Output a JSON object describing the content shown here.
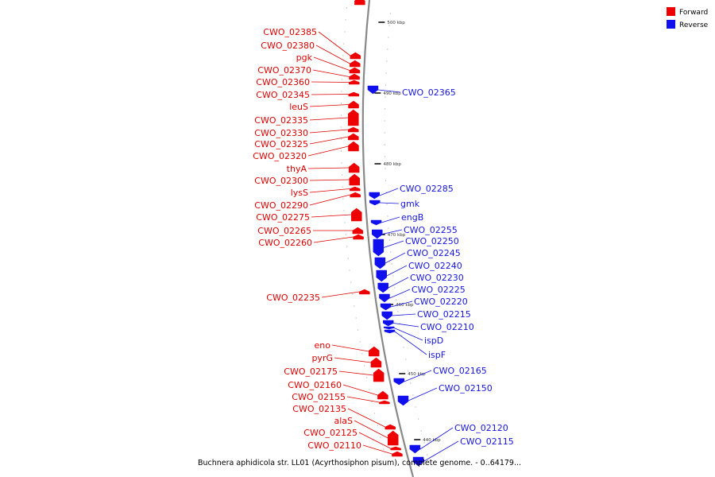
{
  "legend": {
    "forward_label": "Forward",
    "reverse_label": "Reverse",
    "forward_color": "#ee0000",
    "reverse_color": "#1010ee"
  },
  "colors": {
    "forward_text": "#dd0000",
    "reverse_text": "#1515dd",
    "backbone": "#888888"
  },
  "caption": "Buchnera aphidicola str. LL01 (Acyrthosiphon pisum), complete genome. - 0..64179...",
  "ticks": [
    "500 kbp",
    "490 kbp",
    "480 kbp",
    "470 kbp",
    "460 kbp",
    "450 kbp",
    "440 kbp"
  ],
  "forward_genes": [
    "CWO_02385",
    "CWO_02380",
    "pgk",
    "CWO_02370",
    "CWO_02360",
    "CWO_02345",
    "leuS",
    "CWO_02335",
    "CWO_02330",
    "CWO_02325",
    "CWO_02320",
    "thyA",
    "CWO_02300",
    "lysS",
    "CWO_02290",
    "CWO_02275",
    "CWO_02265",
    "CWO_02260",
    "CWO_02235",
    "eno",
    "pyrG",
    "CWO_02175",
    "CWO_02160",
    "CWO_02155",
    "CWO_02135",
    "alaS",
    "CWO_02125",
    "CWO_02110"
  ],
  "reverse_genes": [
    "CWO_02365",
    "CWO_02285",
    "gmk",
    "engB",
    "CWO_02255",
    "CWO_02250",
    "CWO_02245",
    "CWO_02240",
    "CWO_02230",
    "CWO_02225",
    "CWO_02220",
    "CWO_02215",
    "CWO_02210",
    "ispD",
    "ispF",
    "CWO_02165",
    "CWO_02150",
    "CWO_02120",
    "CWO_02115"
  ]
}
